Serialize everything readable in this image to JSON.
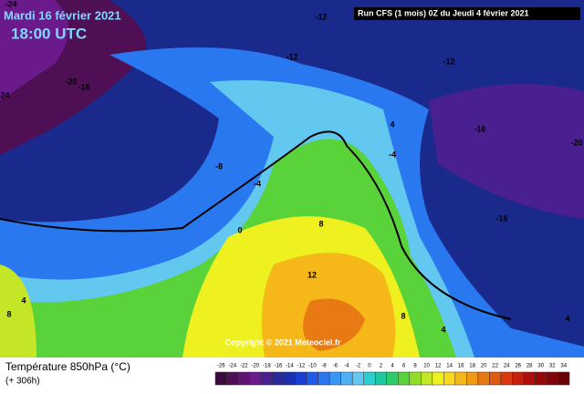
{
  "header": {
    "date": "Mardi 16 février 2021",
    "time": "18:00 UTC",
    "run": "Run CFS (1 mois) 0Z du Jeudi 4 février 2021"
  },
  "map": {
    "contour_labels": [
      -24,
      -12,
      -12,
      -12,
      -20,
      -16,
      -24,
      -8,
      -4,
      0,
      4,
      -16,
      -20,
      -16,
      8,
      12,
      4,
      8,
      8,
      4,
      4,
      -4
    ],
    "copyright": "Copyright © 2021 Meteociel.fr"
  },
  "footer": {
    "variable": "Température 850hPa (°C)",
    "lead": "(+ 306h)"
  },
  "legend": {
    "ticks": [
      -26,
      -24,
      -22,
      -20,
      -18,
      -16,
      -14,
      -12,
      -10,
      -8,
      -6,
      -4,
      -2,
      0,
      2,
      4,
      6,
      8,
      10,
      12,
      14,
      16,
      18,
      20,
      22,
      24,
      26,
      28,
      30,
      32,
      34
    ],
    "colors": [
      "#3a0a3a",
      "#4e0f55",
      "#5e1470",
      "#6a1a8a",
      "#4a1f8f",
      "#2a2a9a",
      "#1a2fb0",
      "#1a3fd0",
      "#1f5ae8",
      "#2a78f0",
      "#3b95f5",
      "#4fb0f5",
      "#63c8f0",
      "#2ad0d0",
      "#20c8a0",
      "#2ecc6a",
      "#5ad23a",
      "#8fdc2a",
      "#c4e626",
      "#eef020",
      "#f7d81c",
      "#f5b818",
      "#f09a16",
      "#e87a14",
      "#e05a12",
      "#d83a10",
      "#c8200e",
      "#b0100c",
      "#98080a",
      "#800408",
      "#680206"
    ]
  }
}
